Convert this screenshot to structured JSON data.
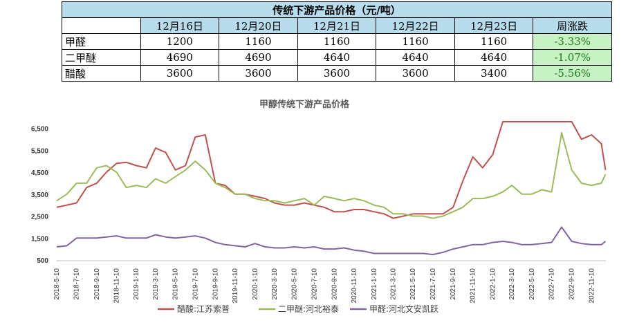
{
  "table": {
    "title": "传统下游产品价格（元/吨）",
    "header_change": "周涨跌",
    "dates": [
      "12月16日",
      "12月20日",
      "12月21日",
      "12月22日",
      "12月23日"
    ],
    "rows": [
      {
        "name": "甲醛",
        "values": [
          "1200",
          "1160",
          "1160",
          "1160",
          "1160"
        ],
        "change": "-3.33%"
      },
      {
        "name": "二甲醚",
        "values": [
          "4690",
          "4690",
          "4640",
          "4640",
          "4640"
        ],
        "change": "-1.07%"
      },
      {
        "name": "醋酸",
        "values": [
          "3600",
          "3600",
          "3600",
          "3600",
          "3400"
        ],
        "change": "-5.56%"
      }
    ]
  },
  "colors": {
    "header_bg": "#b7dcec",
    "change_bg": "#c7f3c4",
    "change_text": "#1f7a1f"
  },
  "chart_data": {
    "type": "line",
    "title": "甲醇传统下游产品价格",
    "x_ticks": [
      "2018-5-10",
      "2018-7-10",
      "2018-9-10",
      "2018-11-10",
      "2019-1-10",
      "2019-3-10",
      "2019-5-10",
      "2019-7-10",
      "2019-9-10",
      "2019-11-10",
      "2020-1-10",
      "2020-3-10",
      "2020-5-10",
      "2020-7-10",
      "2020-9-10",
      "2020-11-10",
      "2021-1-10",
      "2021-3-10",
      "2021-5-10",
      "2021-7-10",
      "2021-9-10",
      "2021-11-10",
      "2022-1-10",
      "2022-3-10",
      "2022-5-10",
      "2022-7-10",
      "2022-9-10",
      "2022-11-10"
    ],
    "y_ticks": [
      500,
      1500,
      2500,
      3500,
      4500,
      5500,
      6500
    ],
    "ylim": [
      500,
      6800
    ],
    "grid": false,
    "legend_position": "bottom",
    "series": [
      {
        "name": "醋酸:江苏索普",
        "color": "#c0504d",
        "x": [
          "2018-5-10",
          "2018-6-10",
          "2018-7-10",
          "2018-8-10",
          "2018-9-10",
          "2018-10-10",
          "2018-11-10",
          "2018-12-10",
          "2019-1-10",
          "2019-2-10",
          "2019-3-10",
          "2019-4-10",
          "2019-5-10",
          "2019-6-10",
          "2019-7-10",
          "2019-8-10",
          "2019-9-10",
          "2019-10-10",
          "2019-11-10",
          "2019-12-10",
          "2020-1-10",
          "2020-2-10",
          "2020-3-10",
          "2020-4-10",
          "2020-5-10",
          "2020-6-10",
          "2020-7-10",
          "2020-8-10",
          "2020-9-10",
          "2020-10-10",
          "2020-11-10",
          "2020-12-10",
          "2021-1-10",
          "2021-2-10",
          "2021-3-10",
          "2021-4-10",
          "2021-5-10",
          "2021-6-10",
          "2021-7-10",
          "2021-8-10",
          "2021-9-10",
          "2021-10-10",
          "2021-11-10",
          "2021-12-10",
          "2022-1-10",
          "2022-2-10",
          "2022-3-10",
          "2022-4-10",
          "2022-5-10",
          "2022-6-10",
          "2022-7-10",
          "2022-8-10",
          "2022-9-10",
          "2022-10-10",
          "2022-11-10",
          "2022-12-10",
          "2022-12-23"
        ],
        "values": [
          2900,
          3000,
          3100,
          3800,
          4000,
          4500,
          4900,
          4950,
          4800,
          4700,
          5600,
          5400,
          4600,
          4800,
          6100,
          6200,
          4000,
          3900,
          3500,
          3500,
          3400,
          3300,
          3100,
          3000,
          3000,
          3100,
          3000,
          2900,
          2700,
          2700,
          2800,
          2800,
          2700,
          2600,
          2400,
          2500,
          2600,
          2600,
          2600,
          2600,
          2900,
          4100,
          5200,
          4700,
          5300,
          6800,
          6800,
          6800,
          6800,
          6800,
          6800,
          6800,
          6800,
          6000,
          6200,
          5800,
          4600
        ]
      },
      {
        "name": "二甲醚:河北裕泰",
        "color": "#9bbb59",
        "x": [
          "2018-5-10",
          "2018-6-10",
          "2018-7-10",
          "2018-8-10",
          "2018-9-10",
          "2018-10-10",
          "2018-11-10",
          "2018-12-10",
          "2019-1-10",
          "2019-2-10",
          "2019-3-10",
          "2019-4-10",
          "2019-5-10",
          "2019-6-10",
          "2019-7-10",
          "2019-8-10",
          "2019-9-10",
          "2019-10-10",
          "2019-11-10",
          "2019-12-10",
          "2020-1-10",
          "2020-2-10",
          "2020-3-10",
          "2020-4-10",
          "2020-5-10",
          "2020-6-10",
          "2020-7-10",
          "2020-8-10",
          "2020-9-10",
          "2020-10-10",
          "2020-11-10",
          "2020-12-10",
          "2021-1-10",
          "2021-2-10",
          "2021-3-10",
          "2021-4-10",
          "2021-5-10",
          "2021-6-10",
          "2021-7-10",
          "2021-8-10",
          "2021-9-10",
          "2021-10-10",
          "2021-11-10",
          "2021-12-10",
          "2022-1-10",
          "2022-2-10",
          "2022-3-10",
          "2022-4-10",
          "2022-5-10",
          "2022-6-10",
          "2022-7-10",
          "2022-8-10",
          "2022-9-10",
          "2022-10-10",
          "2022-11-10",
          "2022-12-10",
          "2022-12-23"
        ],
        "values": [
          3200,
          3500,
          4000,
          4000,
          4700,
          4800,
          4500,
          3800,
          3900,
          3800,
          4200,
          4000,
          4300,
          4600,
          5000,
          4600,
          4000,
          3800,
          3500,
          3500,
          3300,
          3200,
          3200,
          3100,
          3200,
          3300,
          3000,
          3400,
          3300,
          3200,
          3300,
          3200,
          3000,
          2900,
          2600,
          2600,
          2500,
          2500,
          2400,
          2500,
          2700,
          2900,
          3300,
          3300,
          3400,
          3600,
          3900,
          3500,
          3500,
          3700,
          3600,
          6300,
          4600,
          4000,
          3900,
          4000,
          4400
        ]
      },
      {
        "name": "甲醛:河北文安凯跃",
        "color": "#8064a2",
        "x": [
          "2018-5-10",
          "2018-6-10",
          "2018-7-10",
          "2018-8-10",
          "2018-9-10",
          "2018-10-10",
          "2018-11-10",
          "2018-12-10",
          "2019-1-10",
          "2019-2-10",
          "2019-3-10",
          "2019-4-10",
          "2019-5-10",
          "2019-6-10",
          "2019-7-10",
          "2019-8-10",
          "2019-9-10",
          "2019-10-10",
          "2019-11-10",
          "2019-12-10",
          "2020-1-10",
          "2020-2-10",
          "2020-3-10",
          "2020-4-10",
          "2020-5-10",
          "2020-6-10",
          "2020-7-10",
          "2020-8-10",
          "2020-9-10",
          "2020-10-10",
          "2020-11-10",
          "2020-12-10",
          "2021-1-10",
          "2021-2-10",
          "2021-3-10",
          "2021-4-10",
          "2021-5-10",
          "2021-6-10",
          "2021-7-10",
          "2021-8-10",
          "2021-9-10",
          "2021-10-10",
          "2021-11-10",
          "2021-12-10",
          "2022-1-10",
          "2022-2-10",
          "2022-3-10",
          "2022-4-10",
          "2022-5-10",
          "2022-6-10",
          "2022-7-10",
          "2022-8-10",
          "2022-9-10",
          "2022-10-10",
          "2022-11-10",
          "2022-12-10",
          "2022-12-23"
        ],
        "values": [
          1100,
          1150,
          1500,
          1500,
          1500,
          1550,
          1600,
          1500,
          1500,
          1500,
          1650,
          1550,
          1500,
          1550,
          1600,
          1500,
          1300,
          1200,
          1150,
          1100,
          1250,
          1100,
          1050,
          1050,
          1100,
          1050,
          1100,
          1000,
          1000,
          1050,
          950,
          900,
          800,
          800,
          800,
          800,
          800,
          800,
          750,
          850,
          1000,
          1100,
          1200,
          1200,
          1300,
          1350,
          1300,
          1200,
          1200,
          1250,
          1300,
          2000,
          1350,
          1250,
          1200,
          1200,
          1350
        ]
      }
    ]
  }
}
